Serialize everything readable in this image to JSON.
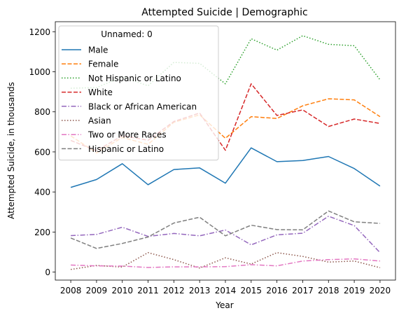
{
  "chart_data": {
    "type": "line",
    "title": "Attempted Suicide | Demographic",
    "xlabel": "Year",
    "ylabel": "Attempted Suicide, in thousands",
    "x": [
      2008,
      2009,
      2010,
      2011,
      2012,
      2013,
      2014,
      2015,
      2016,
      2017,
      2018,
      2019,
      2020
    ],
    "ylim": [
      -40,
      1250
    ],
    "yticks": [
      0,
      200,
      400,
      600,
      800,
      1000,
      1200
    ],
    "grid": false,
    "legend": {
      "title": "Unnamed: 0",
      "position": "top-left"
    },
    "series": [
      {
        "name": "Male",
        "color": "#1f77b4",
        "dash": "solid",
        "values": [
          423,
          462,
          541,
          436,
          512,
          520,
          444,
          620,
          551,
          557,
          577,
          517,
          429
        ]
      },
      {
        "name": "Female",
        "color": "#ff7f0e",
        "dash": "dashed",
        "values": [
          680,
          595,
          672,
          638,
          748,
          785,
          668,
          776,
          767,
          830,
          865,
          860,
          776
        ]
      },
      {
        "name": "Not Hispanic or Latino",
        "color": "#2ca02c",
        "dash": "dotted",
        "values": [
          918,
          921,
          975,
          930,
          1047,
          1042,
          940,
          1165,
          1108,
          1180,
          1137,
          1130,
          960
        ]
      },
      {
        "name": "White",
        "color": "#d62728",
        "dash": "dashed",
        "values": [
          657,
          606,
          681,
          658,
          752,
          794,
          608,
          940,
          782,
          810,
          727,
          764,
          742
        ]
      },
      {
        "name": "Black or African American",
        "color": "#9467bd",
        "dash": "dashdot",
        "values": [
          182,
          188,
          224,
          178,
          193,
          181,
          210,
          136,
          186,
          194,
          279,
          232,
          97
        ]
      },
      {
        "name": "Asian",
        "color": "#8c564b",
        "dash": "dotted",
        "values": [
          13,
          33,
          25,
          97,
          62,
          20,
          71,
          40,
          97,
          78,
          50,
          55,
          22
        ]
      },
      {
        "name": "Two or More Races",
        "color": "#e377c2",
        "dash": "dashdot",
        "values": [
          35,
          31,
          30,
          23,
          26,
          26,
          27,
          37,
          31,
          55,
          62,
          66,
          55
        ]
      },
      {
        "name": "Hispanic or Latino",
        "color": "#7f7f7f",
        "dash": "dashed",
        "values": [
          170,
          118,
          143,
          175,
          245,
          274,
          181,
          234,
          212,
          211,
          305,
          251,
          243
        ]
      }
    ]
  }
}
